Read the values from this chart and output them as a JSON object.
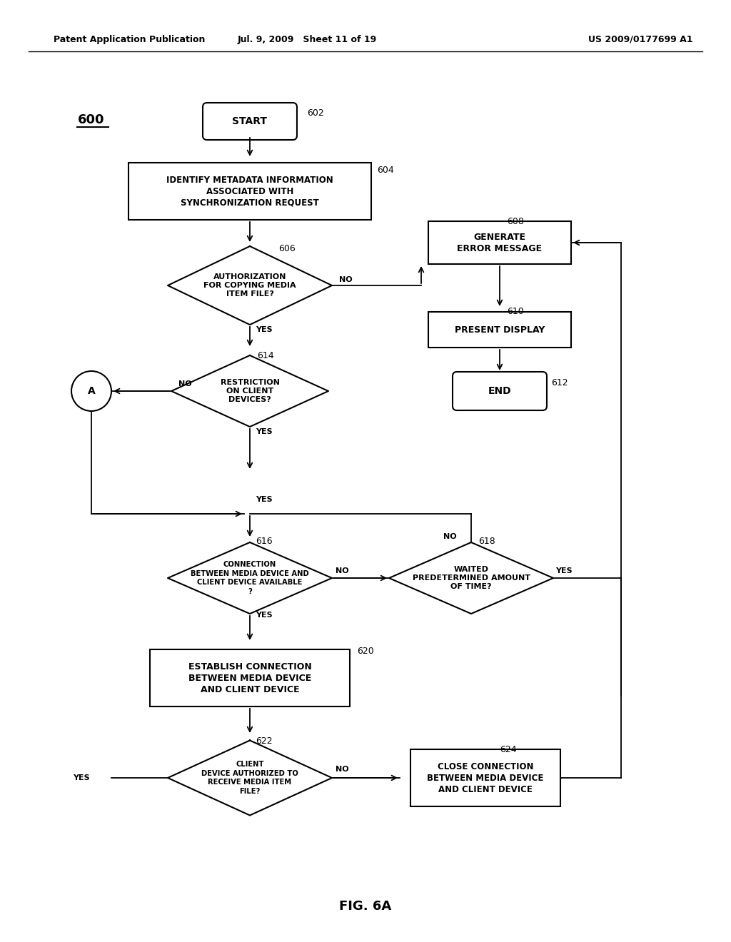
{
  "title_left": "Patent Application Publication",
  "title_mid": "Jul. 9, 2009   Sheet 11 of 19",
  "title_right": "US 2009/0177699 A1",
  "fig_label": "FIG. 6A",
  "diagram_label": "600",
  "background": "#ffffff",
  "figw": 10.24,
  "figh": 13.2,
  "dpi": 100
}
